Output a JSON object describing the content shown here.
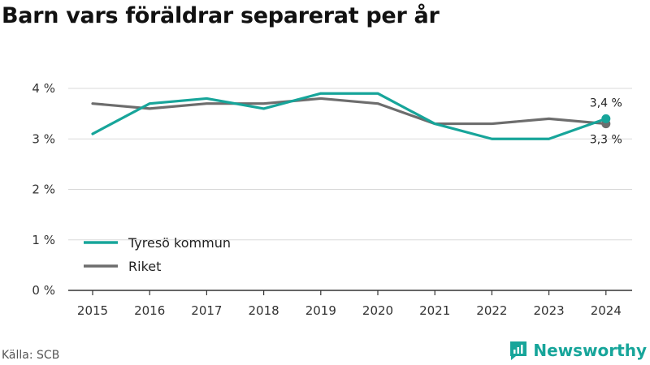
{
  "title": "Barn vars föräldrar separerat per år",
  "source": "Källa: SCB",
  "brand": "Newsworthy",
  "colors": {
    "tyreso": "#17a59a",
    "riket": "#6d6d6d",
    "grid": "#d9d9d9",
    "axis": "#333333"
  },
  "chart_data": {
    "type": "line",
    "title": "Barn vars föräldrar separerat per år",
    "x": [
      "2015",
      "2016",
      "2017",
      "2018",
      "2019",
      "2020",
      "2021",
      "2022",
      "2023",
      "2024"
    ],
    "series": [
      {
        "name": "Tyresö kommun",
        "values": [
          3.1,
          3.7,
          3.8,
          3.6,
          3.9,
          3.9,
          3.3,
          3.0,
          3.0,
          3.4
        ]
      },
      {
        "name": "Riket",
        "values": [
          3.7,
          3.6,
          3.7,
          3.7,
          3.8,
          3.7,
          3.3,
          3.3,
          3.4,
          3.3
        ]
      }
    ],
    "ylim": [
      0,
      4
    ],
    "yticks": [
      "0 %",
      "1 %",
      "2 %",
      "3 %",
      "4 %"
    ],
    "end_labels": [
      "3,4 %",
      "3,3 %"
    ],
    "legend": [
      "Tyresö kommun",
      "Riket"
    ],
    "legend_position": "bottom-left",
    "grid": true,
    "xlabel": "",
    "ylabel": ""
  }
}
